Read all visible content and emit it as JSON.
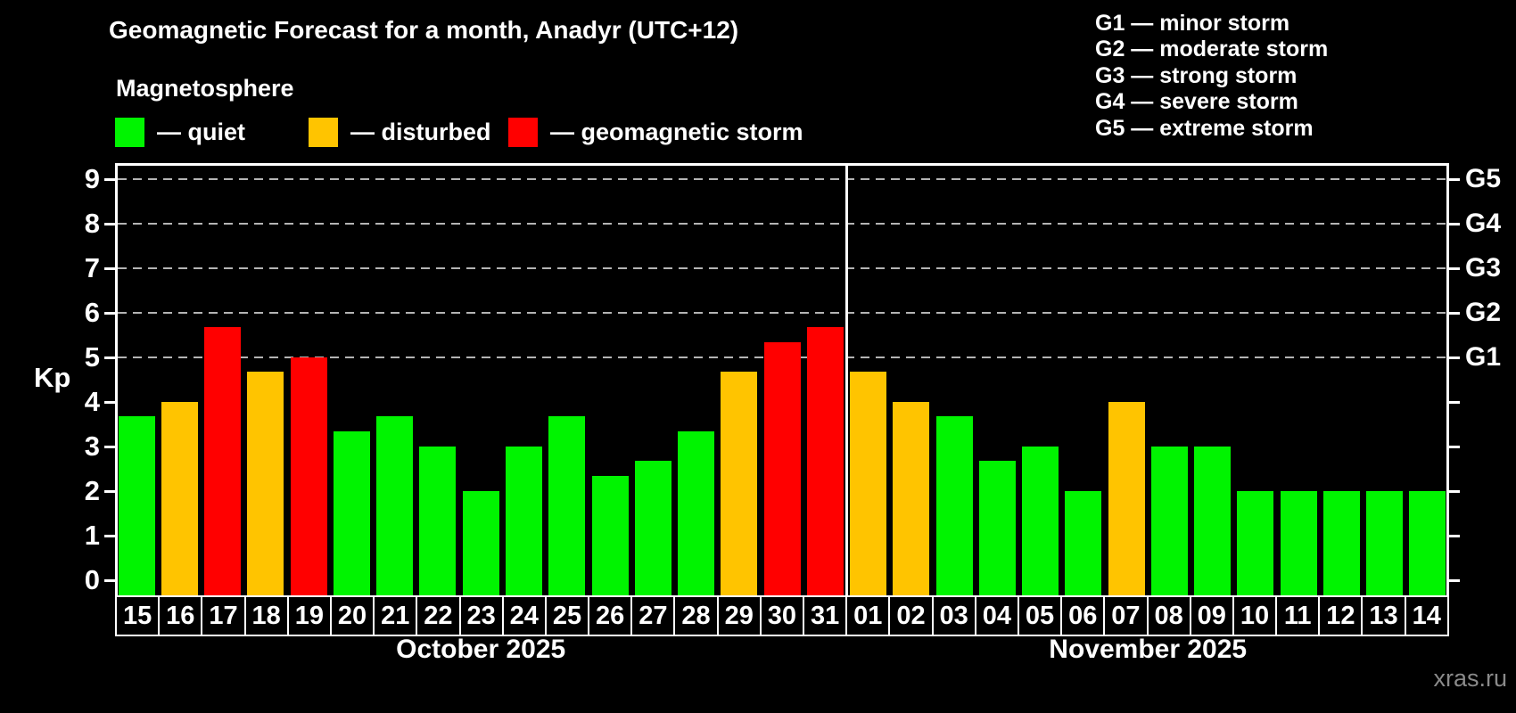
{
  "title": "Geomagnetic Forecast for a month, Anadyr (UTC+12)",
  "subtitle": "Magnetosphere",
  "legend": [
    {
      "key": "quiet",
      "label": "— quiet",
      "color": "#00f400"
    },
    {
      "key": "disturbed",
      "label": "— disturbed",
      "color": "#ffc400"
    },
    {
      "key": "storm",
      "label": "— geomagnetic storm",
      "color": "#ff0000"
    }
  ],
  "g_scale_legend": [
    "G1 — minor storm",
    "G2 — moderate storm",
    "G3 — strong storm",
    "G4 — severe storm",
    "G5 — extreme storm"
  ],
  "watermark": "xras.ru",
  "colors": {
    "quiet": "#00f400",
    "disturbed": "#ffc400",
    "storm": "#ff0000",
    "grid": "#b4b4b4",
    "axis": "#ffffff",
    "background": "#000000",
    "watermark": "#8a8a8a"
  },
  "chart_data": {
    "type": "bar",
    "title": "Geomagnetic Forecast for a month, Anadyr (UTC+12)",
    "ylabel": "Kp",
    "ylim": [
      0,
      9.36
    ],
    "yticks": [
      0,
      1,
      2,
      3,
      4,
      5,
      6,
      7,
      8,
      9
    ],
    "grid_levels_kp": [
      5,
      6,
      7,
      8,
      9
    ],
    "grid_style": "dashed",
    "legend_position": "top",
    "right_axis": [
      {
        "kp": 5,
        "label": "G1"
      },
      {
        "kp": 6,
        "label": "G2"
      },
      {
        "kp": 7,
        "label": "G3"
      },
      {
        "kp": 8,
        "label": "G4"
      },
      {
        "kp": 9,
        "label": "G5"
      }
    ],
    "months": [
      {
        "label": "October 2025",
        "days": 17
      },
      {
        "label": "November 2025",
        "days": 14
      }
    ],
    "bars": [
      {
        "month": "October 2025",
        "date": "15",
        "kp": 3.67,
        "status": "quiet"
      },
      {
        "month": "October 2025",
        "date": "16",
        "kp": 4.0,
        "status": "disturbed"
      },
      {
        "month": "October 2025",
        "date": "17",
        "kp": 5.67,
        "status": "storm"
      },
      {
        "month": "October 2025",
        "date": "18",
        "kp": 4.67,
        "status": "disturbed"
      },
      {
        "month": "October 2025",
        "date": "19",
        "kp": 5.0,
        "status": "storm"
      },
      {
        "month": "October 2025",
        "date": "20",
        "kp": 3.33,
        "status": "quiet"
      },
      {
        "month": "October 2025",
        "date": "21",
        "kp": 3.67,
        "status": "quiet"
      },
      {
        "month": "October 2025",
        "date": "22",
        "kp": 3.0,
        "status": "quiet"
      },
      {
        "month": "October 2025",
        "date": "23",
        "kp": 2.0,
        "status": "quiet"
      },
      {
        "month": "October 2025",
        "date": "24",
        "kp": 3.0,
        "status": "quiet"
      },
      {
        "month": "October 2025",
        "date": "25",
        "kp": 3.67,
        "status": "quiet"
      },
      {
        "month": "October 2025",
        "date": "26",
        "kp": 2.33,
        "status": "quiet"
      },
      {
        "month": "October 2025",
        "date": "27",
        "kp": 2.67,
        "status": "quiet"
      },
      {
        "month": "October 2025",
        "date": "28",
        "kp": 3.33,
        "status": "quiet"
      },
      {
        "month": "October 2025",
        "date": "29",
        "kp": 4.67,
        "status": "disturbed"
      },
      {
        "month": "October 2025",
        "date": "30",
        "kp": 5.33,
        "status": "storm"
      },
      {
        "month": "October 2025",
        "date": "31",
        "kp": 5.67,
        "status": "storm"
      },
      {
        "month": "November 2025",
        "date": "01",
        "kp": 4.67,
        "status": "disturbed"
      },
      {
        "month": "November 2025",
        "date": "02",
        "kp": 4.0,
        "status": "disturbed"
      },
      {
        "month": "November 2025",
        "date": "03",
        "kp": 3.67,
        "status": "quiet"
      },
      {
        "month": "November 2025",
        "date": "04",
        "kp": 2.67,
        "status": "quiet"
      },
      {
        "month": "November 2025",
        "date": "05",
        "kp": 3.0,
        "status": "quiet"
      },
      {
        "month": "November 2025",
        "date": "06",
        "kp": 2.0,
        "status": "quiet"
      },
      {
        "month": "November 2025",
        "date": "07",
        "kp": 4.0,
        "status": "disturbed"
      },
      {
        "month": "November 2025",
        "date": "08",
        "kp": 3.0,
        "status": "quiet"
      },
      {
        "month": "November 2025",
        "date": "09",
        "kp": 3.0,
        "status": "quiet"
      },
      {
        "month": "November 2025",
        "date": "10",
        "kp": 2.0,
        "status": "quiet"
      },
      {
        "month": "November 2025",
        "date": "11",
        "kp": 2.0,
        "status": "quiet"
      },
      {
        "month": "November 2025",
        "date": "12",
        "kp": 2.0,
        "status": "quiet"
      },
      {
        "month": "November 2025",
        "date": "13",
        "kp": 2.0,
        "status": "quiet"
      },
      {
        "month": "November 2025",
        "date": "14",
        "kp": 2.0,
        "status": "quiet"
      }
    ]
  }
}
